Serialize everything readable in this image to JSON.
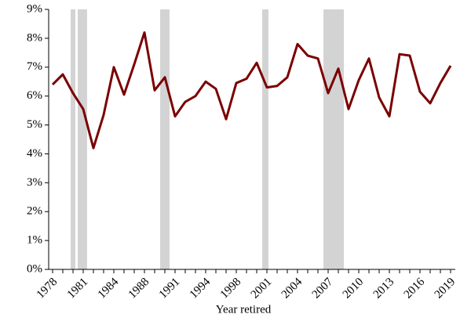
{
  "chart_data": {
    "type": "line",
    "x_label": "Year retired",
    "categories": [
      "1978",
      null,
      null,
      "1981",
      null,
      null,
      "1984",
      null,
      null,
      "1988",
      null,
      null,
      "1991",
      null,
      null,
      "1994",
      null,
      null,
      "1998",
      null,
      null,
      "2001",
      null,
      null,
      "2004",
      null,
      null,
      "2007",
      null,
      null,
      "2010",
      null,
      null,
      "2013",
      null,
      null,
      "2016",
      null,
      null,
      "2019"
    ],
    "series": [
      {
        "color": "#7b0000",
        "values": [
          6.4,
          6.75,
          6.1,
          5.55,
          4.2,
          5.35,
          7.0,
          6.05,
          7.1,
          8.2,
          6.2,
          6.65,
          5.3,
          5.8,
          6.0,
          6.5,
          6.25,
          5.2,
          6.45,
          6.6,
          7.15,
          6.3,
          6.35,
          6.65,
          7.8,
          7.4,
          7.3,
          6.1,
          6.95,
          5.55,
          6.55,
          7.3,
          5.95,
          5.3,
          7.45,
          7.4,
          6.15,
          5.75,
          6.45,
          7.05
        ]
      }
    ],
    "shaded_ranges": [
      [
        1.77,
        2.23
      ],
      [
        2.46,
        3.38
      ],
      [
        10.54,
        11.46
      ],
      [
        20.54,
        21.15
      ],
      [
        26.54,
        28.54
      ]
    ],
    "shade_color": "#d3d3d3",
    "ylim": [
      0,
      9
    ],
    "yticks": [
      {
        "value": 0,
        "label": "0%"
      },
      {
        "value": 1,
        "label": "1%"
      },
      {
        "value": 2,
        "label": "2%"
      },
      {
        "value": 3,
        "label": "3%"
      },
      {
        "value": 4,
        "label": "4%"
      },
      {
        "value": 5,
        "label": "5%"
      },
      {
        "value": 6,
        "label": "6%"
      },
      {
        "value": 7,
        "label": "7%"
      },
      {
        "value": 8,
        "label": "8%"
      },
      {
        "value": 9,
        "label": "9%"
      }
    ]
  }
}
